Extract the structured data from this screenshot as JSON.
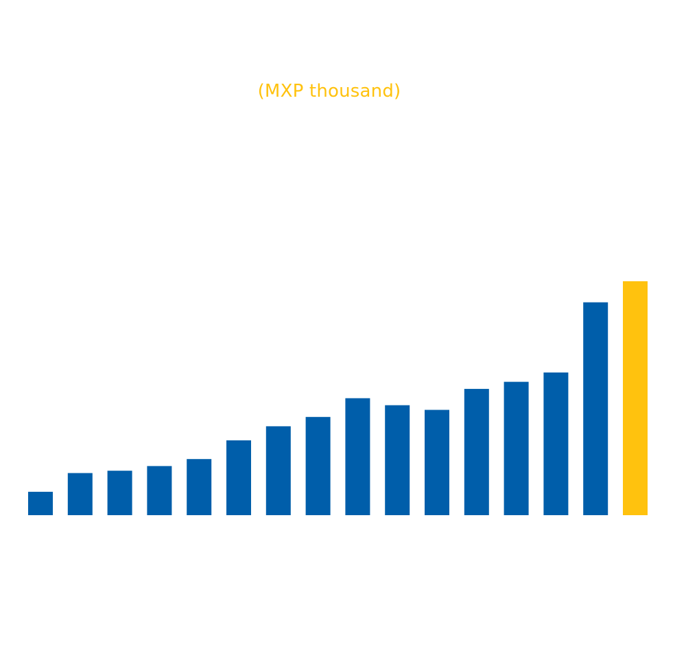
{
  "chart_data": {
    "type": "bar",
    "unit_label": "(MXP thousand)",
    "title": "",
    "xlabel": "",
    "ylabel": "",
    "ylim": [
      0,
      100
    ],
    "grid": false,
    "legend": "none",
    "series": [
      {
        "values": [
          10,
          18,
          19,
          21,
          24,
          32,
          38,
          42,
          50,
          47,
          45,
          54,
          57,
          61,
          91,
          100
        ],
        "colors": [
          "#005eaa",
          "#005eaa",
          "#005eaa",
          "#005eaa",
          "#005eaa",
          "#005eaa",
          "#005eaa",
          "#005eaa",
          "#005eaa",
          "#005eaa",
          "#005eaa",
          "#005eaa",
          "#005eaa",
          "#005eaa",
          "#005eaa",
          "#ffc20e"
        ]
      }
    ],
    "colors": {
      "bar": "#005eaa",
      "highlight": "#ffc20e",
      "unit_label": "#ffc20e"
    }
  }
}
